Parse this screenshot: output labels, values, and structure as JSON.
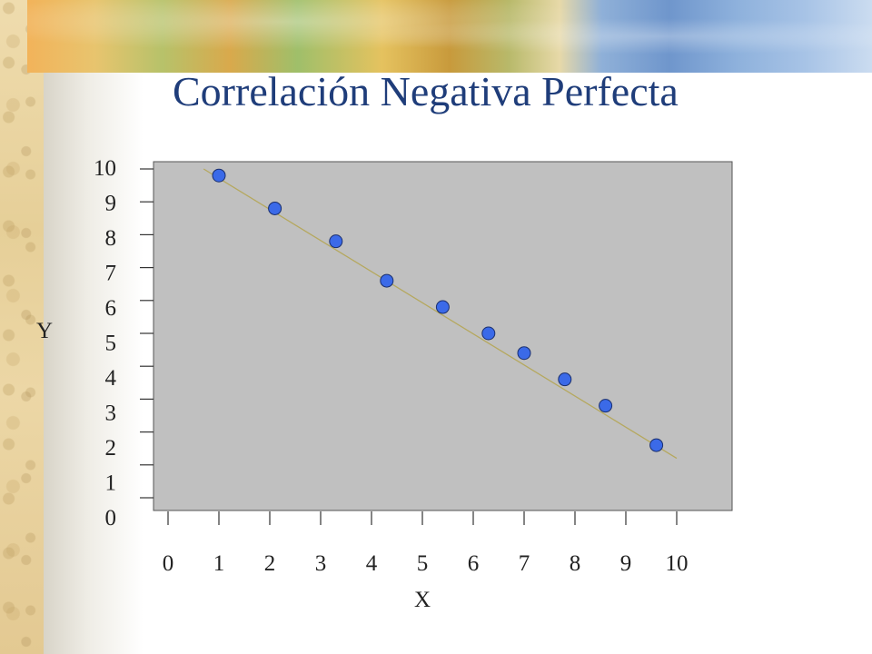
{
  "slide": {
    "title": "Correlación Negativa Perfecta"
  },
  "colors": {
    "title": "#1f3d7a",
    "plot_background": "#c0c0c0",
    "point_fill": "#3b6ae8",
    "trend_line": "#b5a85e"
  },
  "chart_data": {
    "type": "scatter",
    "title": "",
    "xlabel": "X",
    "ylabel": "Y",
    "xlim": [
      0,
      10.3
    ],
    "ylim": [
      0,
      10
    ],
    "xticks": [
      "0",
      "1",
      "2",
      "3",
      "4",
      "5",
      "6",
      "7",
      "8",
      "9",
      "10"
    ],
    "yticks": [
      "0",
      "1",
      "2",
      "3",
      "4",
      "5",
      "6",
      "7",
      "8",
      "9",
      "10"
    ],
    "grid": false,
    "legend": "none",
    "points": [
      {
        "x": 1.0,
        "y": 9.8
      },
      {
        "x": 2.1,
        "y": 8.8
      },
      {
        "x": 3.3,
        "y": 7.8
      },
      {
        "x": 4.3,
        "y": 6.6
      },
      {
        "x": 5.4,
        "y": 5.8
      },
      {
        "x": 6.3,
        "y": 5.0
      },
      {
        "x": 7.0,
        "y": 4.4
      },
      {
        "x": 7.8,
        "y": 3.6
      },
      {
        "x": 8.6,
        "y": 2.8
      },
      {
        "x": 9.6,
        "y": 1.6
      }
    ],
    "trend_line": {
      "x": [
        0.7,
        10.0
      ],
      "y": [
        10.0,
        1.2
      ]
    }
  }
}
